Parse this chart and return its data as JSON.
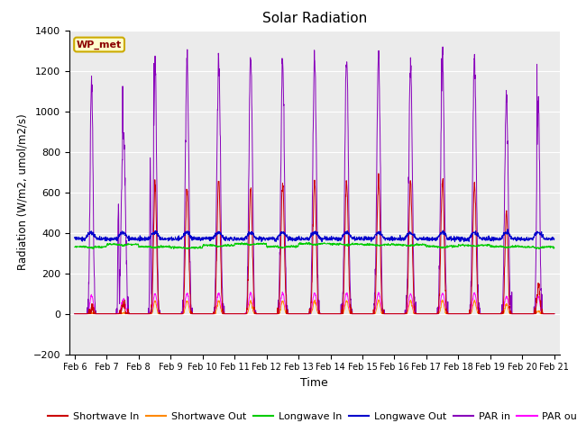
{
  "title": "Solar Radiation",
  "xlabel": "Time",
  "ylabel": "Radiation (W/m2, umol/m2/s)",
  "ylim": [
    -200,
    1400
  ],
  "yticks": [
    -200,
    0,
    200,
    400,
    600,
    800,
    1000,
    1200,
    1400
  ],
  "xlim_days": [
    5.83,
    21.17
  ],
  "xtick_labels": [
    "Feb 6",
    "Feb 7",
    "Feb 8",
    "Feb 9",
    "Feb 10",
    "Feb 11",
    "Feb 12",
    "Feb 13",
    "Feb 14",
    "Feb 15",
    "Feb 16",
    "Feb 17",
    "Feb 18",
    "Feb 19",
    "Feb 20",
    "Feb 21"
  ],
  "xtick_positions": [
    6,
    7,
    8,
    9,
    10,
    11,
    12,
    13,
    14,
    15,
    16,
    17,
    18,
    19,
    20,
    21
  ],
  "background_color": "#ebebeb",
  "legend_label": "WP_met",
  "series_colors": {
    "shortwave_in": "#cc0000",
    "shortwave_out": "#ff8800",
    "longwave_in": "#00cc00",
    "longwave_out": "#0000cc",
    "par_in": "#8800bb",
    "par_out": "#ff00ff"
  },
  "legend_entries": [
    "Shortwave In",
    "Shortwave Out",
    "Longwave In",
    "Longwave Out",
    "PAR in",
    "PAR out"
  ]
}
